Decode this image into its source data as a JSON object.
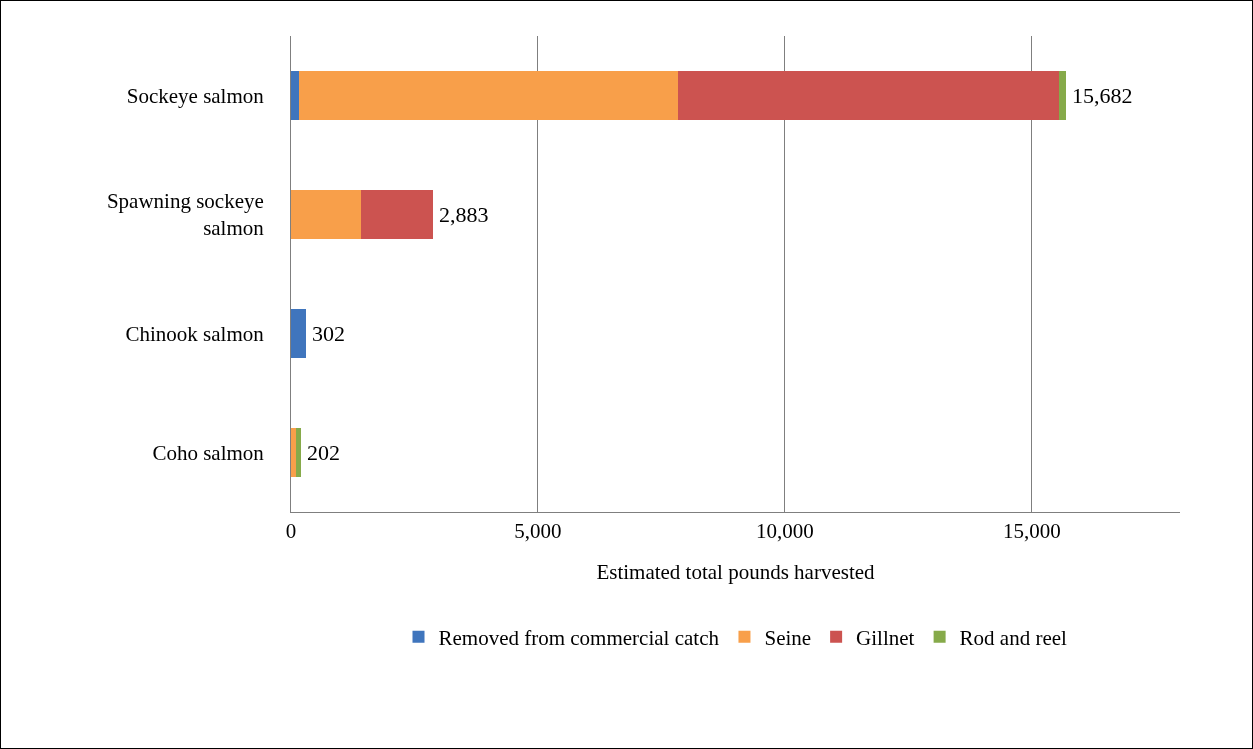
{
  "chart_data": {
    "type": "bar",
    "orientation": "horizontal",
    "stacked": true,
    "categories": [
      "Sockeye salmon",
      "Spawning sockeye salmon",
      "Chinook salmon",
      "Coho salmon"
    ],
    "series": [
      {
        "name": "Removed from commercial catch",
        "color": "#3f75bd",
        "values": [
          160,
          0,
          302,
          0
        ]
      },
      {
        "name": "Seine",
        "color": "#f89f4a",
        "values": [
          7680,
          1420,
          0,
          95
        ]
      },
      {
        "name": "Gillnet",
        "color": "#cc5350",
        "values": [
          7720,
          1463,
          0,
          0
        ]
      },
      {
        "name": "Rod and reel",
        "color": "#86aa4a",
        "values": [
          122,
          0,
          0,
          107
        ]
      }
    ],
    "totals": [
      "15,682",
      "2,883",
      "302",
      "202"
    ],
    "xlabel": "Estimated total pounds harvested",
    "xlim": [
      0,
      18000
    ],
    "xticks": [
      {
        "value": 0,
        "label": "0"
      },
      {
        "value": 5000,
        "label": "5,000"
      },
      {
        "value": 10000,
        "label": "10,000"
      },
      {
        "value": 15000,
        "label": "15,000"
      }
    ],
    "grid": "x",
    "legend": "bottom"
  }
}
